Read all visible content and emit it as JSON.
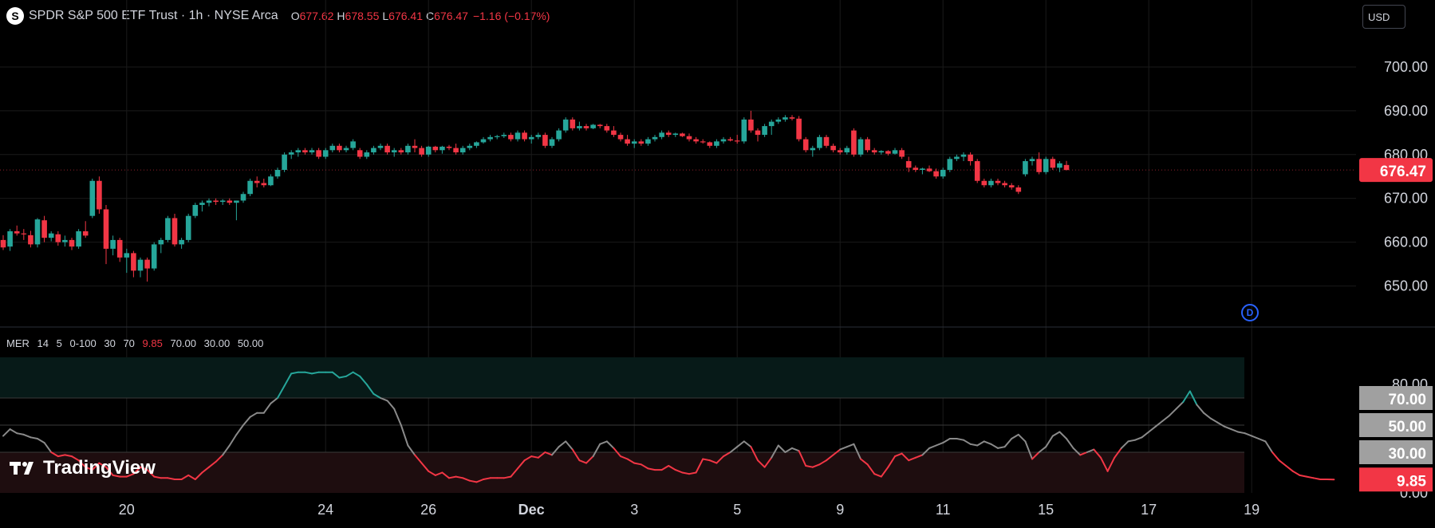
{
  "header": {
    "symbol_icon": "S",
    "title": "SPDR S&P 500 ETF Trust · 1h · NYSE Arca",
    "open_label": "O",
    "open": "677.62",
    "high_label": "H",
    "high": "678.55",
    "low_label": "L",
    "low": "676.41",
    "close_label": "C",
    "close": "676.47",
    "change": "−1.16 (−0.17%)"
  },
  "currency": "USD",
  "logo_text": "TradingView",
  "badge": "D",
  "indicator": {
    "name": "MER",
    "params": [
      "14",
      "5",
      "0-100",
      "30",
      "70"
    ],
    "value": "9.85",
    "levels": [
      "70.00",
      "30.00",
      "50.00"
    ]
  },
  "colors": {
    "up": "#26a69a",
    "down": "#f23645",
    "background": "#000000",
    "text": "#d1d4dc",
    "grid": "#1a1a1a",
    "band_low": "#1e0d0f",
    "band_high": "#071a18",
    "neutral_line": "#8a8a8a"
  },
  "chart_data": [
    {
      "type": "candlestick",
      "x_ticks": [
        "20",
        "24",
        "26",
        "Dec",
        "3",
        "5",
        "9",
        "11",
        "15",
        "17",
        "19"
      ],
      "y_ticks": [
        "700.00",
        "690.00",
        "680.00",
        "670.00",
        "660.00",
        "650.00"
      ],
      "ylim": [
        641,
        708
      ],
      "last_price": "676.47",
      "candles": [
        [
          660.5,
          661.6,
          658.2,
          658.8
        ],
        [
          659.0,
          663.0,
          658.0,
          662.5
        ],
        [
          662.5,
          663.8,
          661.5,
          662.0
        ],
        [
          662.0,
          663.0,
          660.5,
          661.8
        ],
        [
          661.6,
          662.6,
          658.8,
          659.5
        ],
        [
          659.5,
          665.5,
          658.8,
          665.2
        ],
        [
          665.0,
          666.0,
          660.0,
          661.0
        ],
        [
          661.0,
          662.5,
          660.2,
          662.0
        ],
        [
          661.8,
          662.5,
          659.2,
          660.0
        ],
        [
          660.0,
          661.5,
          659.0,
          660.5
        ],
        [
          660.5,
          661.0,
          658.2,
          659.0
        ],
        [
          659.0,
          663.0,
          658.5,
          662.5
        ],
        [
          662.5,
          664.8,
          661.0,
          661.5
        ],
        [
          666.0,
          674.5,
          665.5,
          674.0
        ],
        [
          674.0,
          675.0,
          666.5,
          667.5
        ],
        [
          667.5,
          668.5,
          655.0,
          658.5
        ],
        [
          658.5,
          661.5,
          657.0,
          660.5
        ],
        [
          660.5,
          661.0,
          655.5,
          656.5
        ],
        [
          656.5,
          658.5,
          653.0,
          657.5
        ],
        [
          657.5,
          658.0,
          652.0,
          653.5
        ],
        [
          653.5,
          656.5,
          652.0,
          656.0
        ],
        [
          656.0,
          656.5,
          651.0,
          654.0
        ],
        [
          654.0,
          660.0,
          653.5,
          659.5
        ],
        [
          659.5,
          661.0,
          657.5,
          660.5
        ],
        [
          660.5,
          666.0,
          660.0,
          665.5
        ],
        [
          665.5,
          666.5,
          659.0,
          659.5
        ],
        [
          659.5,
          661.0,
          658.5,
          660.5
        ],
        [
          660.5,
          666.5,
          660.0,
          666.0
        ],
        [
          666.0,
          669.0,
          665.5,
          668.5
        ],
        [
          668.5,
          669.5,
          667.0,
          669.0
        ],
        [
          669.0,
          670.0,
          668.2,
          669.5
        ],
        [
          669.5,
          670.0,
          668.5,
          669.2
        ],
        [
          669.2,
          669.8,
          668.5,
          669.5
        ],
        [
          669.5,
          670.0,
          668.5,
          669.0
        ],
        [
          669.0,
          669.5,
          665.0,
          669.5
        ],
        [
          669.5,
          671.5,
          669.0,
          671.0
        ],
        [
          671.0,
          674.5,
          670.5,
          674.0
        ],
        [
          674.0,
          675.0,
          672.5,
          673.5
        ],
        [
          673.5,
          674.5,
          672.5,
          673.0
        ],
        [
          673.0,
          675.5,
          672.8,
          675.0
        ],
        [
          675.0,
          677.0,
          674.5,
          676.5
        ],
        [
          676.5,
          680.5,
          676.0,
          680.0
        ],
        [
          680.0,
          681.0,
          679.0,
          680.5
        ],
        [
          680.5,
          681.5,
          679.5,
          681.0
        ],
        [
          681.0,
          681.5,
          680.0,
          680.5
        ],
        [
          680.5,
          681.5,
          680.0,
          681.0
        ],
        [
          681.0,
          681.5,
          679.0,
          679.5
        ],
        [
          679.5,
          681.5,
          679.0,
          681.0
        ],
        [
          681.0,
          682.5,
          680.5,
          682.0
        ],
        [
          682.0,
          682.5,
          680.5,
          681.0
        ],
        [
          681.0,
          682.0,
          680.5,
          681.5
        ],
        [
          681.5,
          683.5,
          681.0,
          683.0
        ],
        [
          681.0,
          681.5,
          679.0,
          679.5
        ],
        [
          679.5,
          681.0,
          679.0,
          680.5
        ],
        [
          680.5,
          682.0,
          680.0,
          681.5
        ],
        [
          681.5,
          682.5,
          681.0,
          682.0
        ],
        [
          682.0,
          682.5,
          680.0,
          680.5
        ],
        [
          680.5,
          681.5,
          679.5,
          681.0
        ],
        [
          681.0,
          681.5,
          680.0,
          680.5
        ],
        [
          680.5,
          682.5,
          680.0,
          682.0
        ],
        [
          682.0,
          683.5,
          680.5,
          681.5
        ],
        [
          681.5,
          682.0,
          679.5,
          680.0
        ],
        [
          680.0,
          682.0,
          679.5,
          681.8
        ],
        [
          681.8,
          682.0,
          680.5,
          681.0
        ],
        [
          681.0,
          682.0,
          680.2,
          681.8
        ],
        [
          681.8,
          682.2,
          681.0,
          681.5
        ],
        [
          681.5,
          682.5,
          680.0,
          680.5
        ],
        [
          680.5,
          682.0,
          680.0,
          681.5
        ],
        [
          681.5,
          682.5,
          681.0,
          682.0
        ],
        [
          682.0,
          683.0,
          681.5,
          682.8
        ],
        [
          682.8,
          684.0,
          682.5,
          683.5
        ],
        [
          683.5,
          684.5,
          683.0,
          684.0
        ],
        [
          684.0,
          684.5,
          683.5,
          684.2
        ],
        [
          684.2,
          685.0,
          683.8,
          684.5
        ],
        [
          684.5,
          685.0,
          683.0,
          683.5
        ],
        [
          683.5,
          685.5,
          683.0,
          685.0
        ],
        [
          685.0,
          685.5,
          683.0,
          683.5
        ],
        [
          683.5,
          684.5,
          682.5,
          684.0
        ],
        [
          684.0,
          685.0,
          683.5,
          684.5
        ],
        [
          684.5,
          685.0,
          681.5,
          682.0
        ],
        [
          682.0,
          684.0,
          681.5,
          683.5
        ],
        [
          683.5,
          686.0,
          683.0,
          685.5
        ],
        [
          685.5,
          688.5,
          685.0,
          688.0
        ],
        [
          688.0,
          688.5,
          685.5,
          686.0
        ],
        [
          686.0,
          687.5,
          685.5,
          686.5
        ],
        [
          686.5,
          687.0,
          685.5,
          686.0
        ],
        [
          686.0,
          687.0,
          685.8,
          686.8
        ],
        [
          686.8,
          687.0,
          686.0,
          686.5
        ],
        [
          686.5,
          687.0,
          685.0,
          685.5
        ],
        [
          685.5,
          686.5,
          684.0,
          684.5
        ],
        [
          684.5,
          685.0,
          683.0,
          683.5
        ],
        [
          683.5,
          684.5,
          682.0,
          682.5
        ],
        [
          682.5,
          683.5,
          681.5,
          683.0
        ],
        [
          683.0,
          683.5,
          682.0,
          682.5
        ],
        [
          682.5,
          684.0,
          682.0,
          683.5
        ],
        [
          683.5,
          684.5,
          683.0,
          684.0
        ],
        [
          684.0,
          685.5,
          683.5,
          685.0
        ],
        [
          685.0,
          685.5,
          684.0,
          684.5
        ],
        [
          684.5,
          685.0,
          684.0,
          684.8
        ],
        [
          684.8,
          685.0,
          684.0,
          684.2
        ],
        [
          684.2,
          684.8,
          683.0,
          683.5
        ],
        [
          683.5,
          684.0,
          682.5,
          683.0
        ],
        [
          683.0,
          683.5,
          682.5,
          682.8
        ],
        [
          682.8,
          683.0,
          681.5,
          682.0
        ],
        [
          682.0,
          683.5,
          681.5,
          683.0
        ],
        [
          683.0,
          684.0,
          682.5,
          683.5
        ],
        [
          683.5,
          684.0,
          683.0,
          683.2
        ],
        [
          683.2,
          684.5,
          682.5,
          683.0
        ],
        [
          683.0,
          688.5,
          682.5,
          688.0
        ],
        [
          688.0,
          690.0,
          685.0,
          685.5
        ],
        [
          685.5,
          686.0,
          683.0,
          684.5
        ],
        [
          684.5,
          687.0,
          684.0,
          686.5
        ],
        [
          686.5,
          688.0,
          684.5,
          687.5
        ],
        [
          687.5,
          688.5,
          687.0,
          688.0
        ],
        [
          688.0,
          689.0,
          687.5,
          688.5
        ],
        [
          688.5,
          689.0,
          687.8,
          688.2
        ],
        [
          688.2,
          688.8,
          683.0,
          683.5
        ],
        [
          683.5,
          684.0,
          680.5,
          681.0
        ],
        [
          681.0,
          682.0,
          679.5,
          681.5
        ],
        [
          681.5,
          684.5,
          681.0,
          684.0
        ],
        [
          684.0,
          684.5,
          681.5,
          682.0
        ],
        [
          682.0,
          682.5,
          680.5,
          681.0
        ],
        [
          681.0,
          681.5,
          680.0,
          680.5
        ],
        [
          680.5,
          682.0,
          680.0,
          681.5
        ],
        [
          685.5,
          686.0,
          679.5,
          680.0
        ],
        [
          680.0,
          684.0,
          679.5,
          683.5
        ],
        [
          683.5,
          684.0,
          680.5,
          681.0
        ],
        [
          681.0,
          681.5,
          680.0,
          680.5
        ],
        [
          680.5,
          681.0,
          680.0,
          680.8
        ],
        [
          680.8,
          681.0,
          679.8,
          680.2
        ],
        [
          680.2,
          681.5,
          680.0,
          681.0
        ],
        [
          681.0,
          681.5,
          679.0,
          679.5
        ],
        [
          678.5,
          679.5,
          676.0,
          677.0
        ],
        [
          677.0,
          677.5,
          676.0,
          676.5
        ],
        [
          676.5,
          677.0,
          675.5,
          676.8
        ],
        [
          676.8,
          677.5,
          676.0,
          676.2
        ],
        [
          676.2,
          676.8,
          674.5,
          675.0
        ],
        [
          675.0,
          677.0,
          674.5,
          676.5
        ],
        [
          676.5,
          679.5,
          676.0,
          679.0
        ],
        [
          679.0,
          680.0,
          678.5,
          679.5
        ],
        [
          679.5,
          680.5,
          678.5,
          680.0
        ],
        [
          680.0,
          680.5,
          677.5,
          678.5
        ],
        [
          678.5,
          679.0,
          673.5,
          674.0
        ],
        [
          674.0,
          674.5,
          672.5,
          673.0
        ],
        [
          673.0,
          674.5,
          672.5,
          674.0
        ],
        [
          674.0,
          674.5,
          673.0,
          673.5
        ],
        [
          673.5,
          674.0,
          672.5,
          673.0
        ],
        [
          673.0,
          673.5,
          672.0,
          672.5
        ],
        [
          672.5,
          673.0,
          671.0,
          671.5
        ],
        [
          675.5,
          679.0,
          675.0,
          678.5
        ],
        [
          678.5,
          679.5,
          677.5,
          679.0
        ],
        [
          679.0,
          680.5,
          675.5,
          676.0
        ],
        [
          676.0,
          679.5,
          675.5,
          679.0
        ],
        [
          679.0,
          679.5,
          676.5,
          677.0
        ],
        [
          677.0,
          678.5,
          676.0,
          678.0
        ],
        [
          677.62,
          678.55,
          676.41,
          676.47
        ]
      ]
    },
    {
      "type": "line",
      "name": "MER",
      "x_ticks": [
        "20",
        "24",
        "26",
        "Dec",
        "3",
        "5",
        "9",
        "11",
        "15",
        "17",
        "19"
      ],
      "y_ticks": [
        "80.00",
        "0.00"
      ],
      "ylim": [
        0,
        100
      ],
      "levels": [
        70,
        50,
        30
      ],
      "last_value": "9.85",
      "values": [
        42,
        47,
        44,
        43,
        41,
        40,
        37,
        30,
        27,
        28,
        27,
        24,
        19,
        17,
        22,
        19,
        13,
        12,
        12,
        14,
        19,
        17,
        12,
        11,
        11,
        10,
        10,
        13,
        10,
        15,
        19,
        23,
        28,
        35,
        43,
        50,
        56,
        59,
        59,
        66,
        70,
        79,
        88,
        89,
        89,
        88,
        89,
        89,
        89,
        85,
        86,
        89,
        86,
        80,
        73,
        70,
        68,
        62,
        50,
        35,
        28,
        22,
        16,
        13,
        15,
        11,
        12,
        11,
        9,
        8,
        10,
        11,
        11,
        11,
        12,
        18,
        24,
        27,
        26,
        30,
        28,
        34,
        38,
        32,
        24,
        22,
        27,
        36,
        38,
        33,
        27,
        25,
        22,
        21,
        18,
        17,
        17,
        20,
        17,
        15,
        14,
        15,
        25,
        24,
        22,
        27,
        30,
        34,
        38,
        34,
        24,
        19,
        26,
        35,
        30,
        33,
        31,
        20,
        19,
        21,
        24,
        28,
        32,
        34,
        36,
        25,
        21,
        14,
        12,
        19,
        27,
        29,
        24,
        26,
        28,
        33,
        35,
        37,
        40,
        40,
        39,
        36,
        35,
        38,
        36,
        33,
        34,
        40,
        43,
        38,
        25,
        30,
        34,
        42,
        45,
        40,
        33,
        28,
        30,
        32,
        26,
        16,
        26,
        33,
        38,
        39,
        41,
        45,
        49,
        53,
        57,
        62,
        67,
        75,
        65,
        59,
        55,
        52,
        49,
        47,
        45,
        44,
        42,
        40,
        38,
        30,
        24,
        20,
        16,
        13,
        12,
        11,
        10,
        10,
        9.85
      ]
    }
  ]
}
